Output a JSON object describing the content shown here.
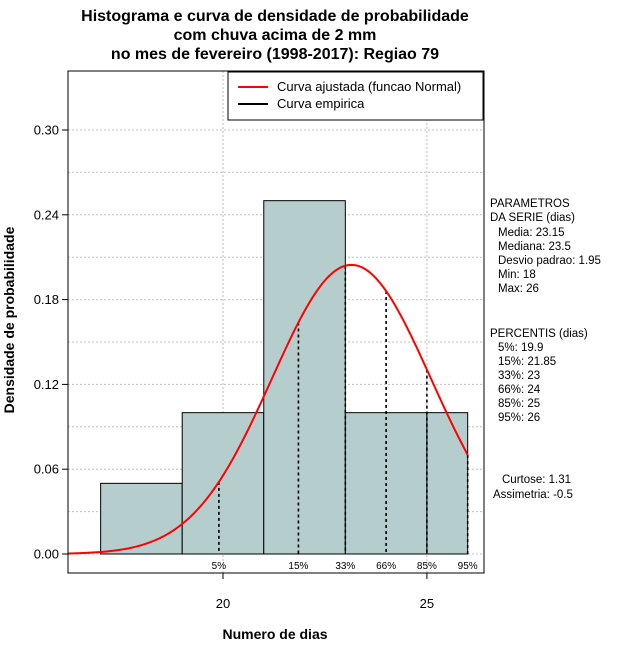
{
  "chart_data": {
    "type": "bar",
    "title_lines": [
      "Histograma e curva de densidade de probabilidade",
      "com chuva acima de 2 mm",
      "no mes de fevereiro (1998-2017): Regiao 79"
    ],
    "xlabel": "Numero de dias",
    "ylabel": "Densidade de probabilidade",
    "xlim": [
      16.2,
      26.4
    ],
    "ylim": [
      0,
      0.34
    ],
    "x_ticks": [
      20,
      25
    ],
    "y_ticks": [
      "0.00",
      "0.06",
      "0.12",
      "0.18",
      "0.24",
      "0.30"
    ],
    "grid": true,
    "legend_position": "top-right",
    "histogram": [
      {
        "x0": 17,
        "x1": 19,
        "density": 0.05
      },
      {
        "x0": 19,
        "x1": 21,
        "density": 0.1
      },
      {
        "x0": 21,
        "x1": 23,
        "density": 0.25
      },
      {
        "x0": 23,
        "x1": 25,
        "density": 0.1
      },
      {
        "x0": 25,
        "x1": 26,
        "density": 0.1
      }
    ],
    "series": [
      {
        "name": "Curva ajustada (funcao Normal)",
        "color": "#ff0000"
      },
      {
        "name": "Curva empirica",
        "color": "#000000"
      }
    ],
    "normal_fit": {
      "mean": 23.15,
      "sd": 1.95
    },
    "percentile_lines": [
      {
        "label": "5%",
        "x": 19.9
      },
      {
        "label": "15%",
        "x": 21.85
      },
      {
        "label": "33%",
        "x": 23
      },
      {
        "label": "66%",
        "x": 24
      },
      {
        "label": "85%",
        "x": 25
      },
      {
        "label": "95%",
        "x": 26
      }
    ],
    "bar_color": "#b5cecd",
    "side_text": {
      "params_lines": [
        "PARAMETROS",
        "DA SERIE (dias)",
        "Media: 23.15",
        "Mediana: 23.5",
        "Desvio padrao: 1.95",
        "Min: 18",
        "Max: 26"
      ],
      "percentis_lines": [
        "PERCENTIS (dias)",
        "5%: 19.9",
        "15%: 21.85",
        "33%: 23",
        "66%: 24",
        "85%: 25",
        "95%: 26"
      ],
      "curtose": "Curtose: 1.31",
      "assimetria": "Assimetria: -0.5"
    }
  }
}
